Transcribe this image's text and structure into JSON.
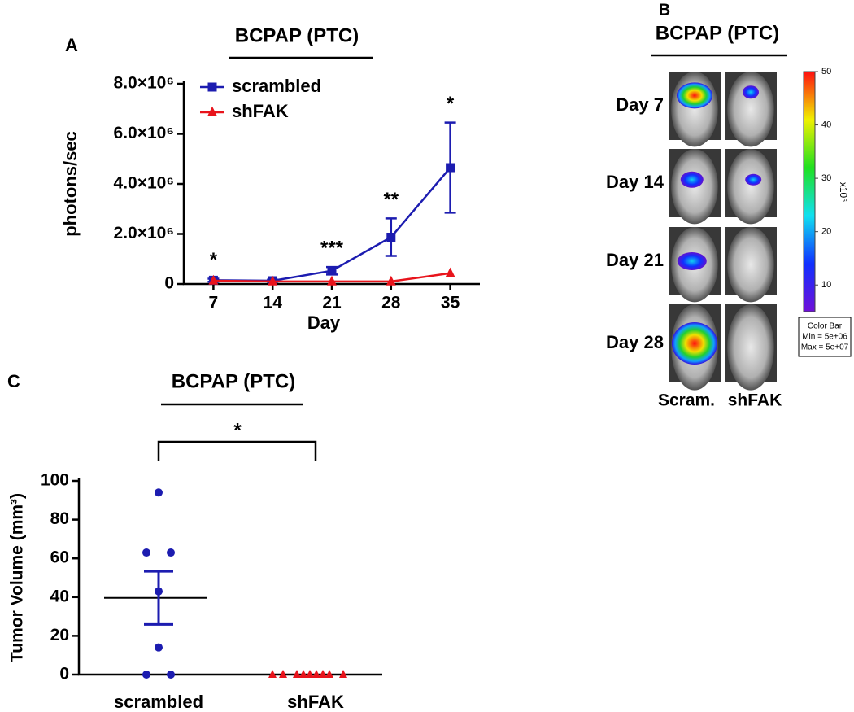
{
  "chart_data": [
    {
      "type": "line",
      "panel": "A",
      "title": "BCPAP (PTC)",
      "x_label": "Day",
      "y_label": "photons/sec",
      "x": [
        7,
        14,
        21,
        28,
        35
      ],
      "xlim": [
        3.5,
        38.5
      ],
      "xticks": [
        7,
        14,
        21,
        28,
        35
      ],
      "ylim": [
        0,
        8000000
      ],
      "yticks": [
        0,
        {
          "value": 2000000,
          "label": "2.0×10⁶"
        },
        {
          "value": 4000000,
          "label": "4.0×10⁶"
        },
        {
          "value": 6000000,
          "label": "6.0×10⁶"
        },
        {
          "value": 8000000,
          "label": "8.0×10⁶"
        }
      ],
      "legend": "top-left",
      "series": [
        {
          "name": "scrambled",
          "color": "#1c1cb0",
          "marker": "square",
          "values": [
            150000,
            130000,
            530000,
            1870000,
            4650000
          ],
          "errors": [
            60000,
            40000,
            150000,
            750000,
            1800000
          ]
        },
        {
          "name": "shFAK",
          "color": "#e8141c",
          "marker": "triangle",
          "values": [
            130000,
            100000,
            100000,
            100000,
            430000
          ]
        }
      ],
      "annotations": [
        {
          "x": 7,
          "text": "*"
        },
        {
          "x": 21,
          "text": "***"
        },
        {
          "x": 28,
          "text": "**"
        },
        {
          "x": 35,
          "text": "*"
        }
      ]
    },
    {
      "type": "scatter",
      "panel": "C",
      "title": "BCPAP (PTC)",
      "y_label": "Tumor Volume (mm³)",
      "categories": [
        "scrambled",
        "shFAK"
      ],
      "ylim": [
        0,
        100
      ],
      "yticks": [
        0,
        20,
        40,
        60,
        80,
        100
      ],
      "groups": [
        {
          "color": "#1c1cb0",
          "marker": "circle",
          "values": [
            94,
            63,
            63,
            43,
            14,
            0,
            0
          ],
          "mean": 39.6,
          "sem": 13.7
        },
        {
          "color": "#e8141c",
          "marker": "triangle",
          "values": [
            0,
            0,
            0,
            0,
            0,
            0,
            0,
            0,
            0
          ]
        }
      ],
      "significance": "*"
    }
  ],
  "panel_b": {
    "panel": "B",
    "title": "BCPAP (PTC)",
    "rows": [
      "Day 7",
      "Day 14",
      "Day 21",
      "Day 28"
    ],
    "columns": [
      "Scram.",
      "shFAK"
    ],
    "colorbar": {
      "range": [
        5,
        50
      ],
      "ticks": [
        10,
        20,
        30,
        40,
        50
      ],
      "unit": "x10⁶",
      "box": [
        "Color Bar",
        "Min = 5e+06",
        "Max = 5e+07"
      ]
    }
  }
}
